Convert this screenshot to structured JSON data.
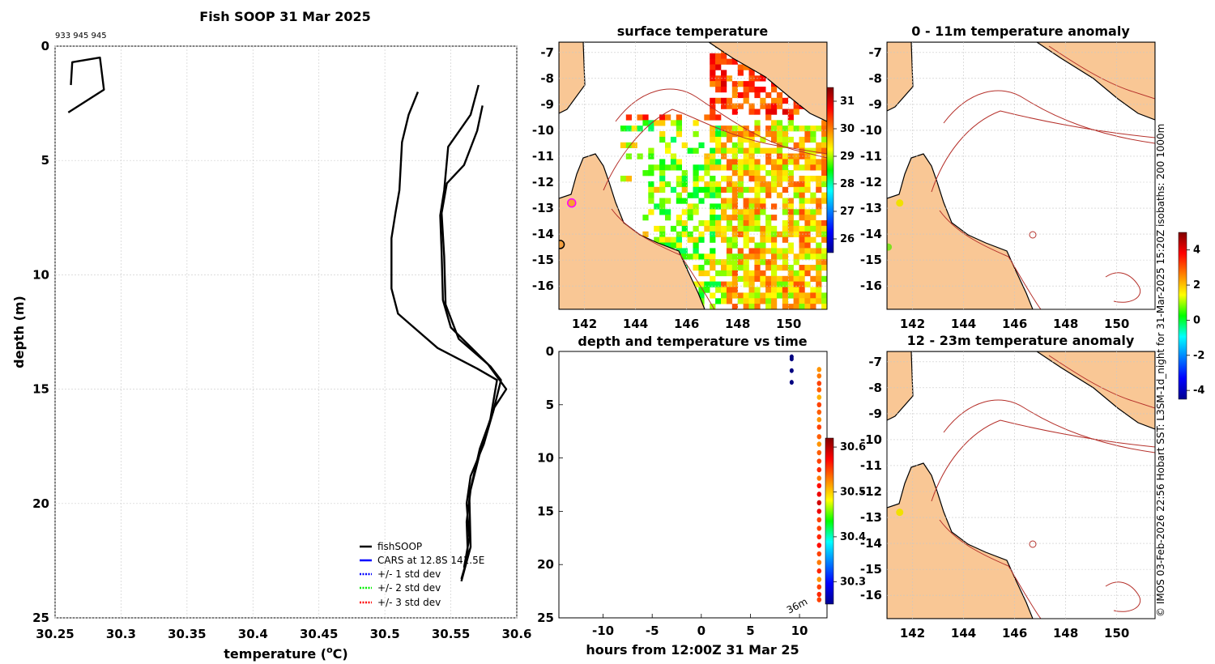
{
  "main_title": "Fish SOOP 31 Mar 2025",
  "ids_label": "933 945 945",
  "side_text": "© IMOS 03-Feb-2026 22:56 Hobart SST: L3SM-1d_night for 31-Mar-2025 15:20Z isobaths: 200  1000m",
  "colors": {
    "land": "#f9c795",
    "isobath": "#b5302a",
    "coast": "#000000",
    "profile": "#000000"
  },
  "chart_data": [
    {
      "id": "profile",
      "type": "line",
      "title": "",
      "xlabel": "temperature (",
      "xlabel_sup": "o",
      "xlabel_end": "C)",
      "ylabel": "depth (m)",
      "xlim": [
        30.25,
        30.6
      ],
      "ylim": [
        0,
        25
      ],
      "y_reversed": true,
      "grid": true,
      "xticks": [
        30.25,
        30.3,
        30.35,
        30.4,
        30.45,
        30.5,
        30.55,
        30.6
      ],
      "xtick_labels": [
        "30.25",
        "30.3",
        "30.35",
        "30.4",
        "30.45",
        "30.5",
        "30.55",
        "30.6"
      ],
      "yticks": [
        0,
        5,
        10,
        15,
        20,
        25
      ],
      "ytick_labels": [
        "0",
        "5",
        "10",
        "15",
        "20",
        "25"
      ],
      "series": [
        {
          "name": "fishSOOP",
          "points": [
            [
              30.262,
              1.7
            ],
            [
              30.263,
              0.7
            ],
            [
              30.284,
              0.5
            ],
            [
              30.287,
              1.9
            ],
            [
              30.26,
              2.9
            ]
          ]
        },
        {
          "name": "fishSOOP",
          "points": [
            [
              30.525,
              2.0
            ],
            [
              30.518,
              3.0
            ],
            [
              30.513,
              4.2
            ],
            [
              30.511,
              6.3
            ],
            [
              30.508,
              7.3
            ],
            [
              30.505,
              8.4
            ],
            [
              30.505,
              10.6
            ],
            [
              30.51,
              11.7
            ],
            [
              30.54,
              13.2
            ],
            [
              30.57,
              14.1
            ],
            [
              30.585,
              14.6
            ],
            [
              30.58,
              16.3
            ],
            [
              30.572,
              17.8
            ],
            [
              30.565,
              19.4
            ],
            [
              30.562,
              20.8
            ],
            [
              30.563,
              22.3
            ],
            [
              30.558,
              23.3
            ]
          ]
        },
        {
          "name": "fishSOOP",
          "points": [
            [
              30.571,
              1.7
            ],
            [
              30.565,
              3.0
            ],
            [
              30.548,
              4.4
            ],
            [
              30.545,
              6.3
            ],
            [
              30.542,
              7.4
            ],
            [
              30.543,
              9.0
            ],
            [
              30.544,
              11.1
            ],
            [
              30.55,
              12.3
            ],
            [
              30.578,
              13.9
            ],
            [
              30.592,
              15.0
            ],
            [
              30.583,
              15.8
            ],
            [
              30.575,
              17.4
            ],
            [
              30.565,
              18.8
            ],
            [
              30.562,
              20.0
            ],
            [
              30.564,
              21.5
            ],
            [
              30.56,
              22.8
            ]
          ]
        },
        {
          "name": "fishSOOP",
          "points": [
            [
              30.574,
              2.6
            ],
            [
              30.57,
              3.7
            ],
            [
              30.56,
              5.2
            ],
            [
              30.547,
              6.0
            ],
            [
              30.543,
              7.3
            ],
            [
              30.545,
              9.2
            ],
            [
              30.546,
              11.3
            ],
            [
              30.556,
              12.8
            ],
            [
              30.58,
              14.0
            ],
            [
              30.588,
              14.6
            ],
            [
              30.582,
              16.0
            ],
            [
              30.572,
              17.6
            ],
            [
              30.564,
              19.6
            ],
            [
              30.565,
              21.9
            ],
            [
              30.558,
              23.4
            ]
          ]
        }
      ],
      "legend": {
        "placement": "bottom-right",
        "entries": [
          {
            "label": "fishSOOP",
            "color": "#000000",
            "style": "solid"
          },
          {
            "label": "CARS at 12.8S 141.5E",
            "color": "#0000ff",
            "style": "solid"
          },
          {
            "label": "+/- 1 std dev",
            "color": "#0000ff",
            "style": "dotted"
          },
          {
            "label": "+/- 2 std dev",
            "color": "#00ee00",
            "style": "dotted"
          },
          {
            "label": "+/- 3 std dev",
            "color": "#ff0000",
            "style": "dotted"
          }
        ]
      }
    },
    {
      "id": "sst",
      "type": "heatmap",
      "title": "surface temperature",
      "xlim": [
        141,
        151.5
      ],
      "ylim": [
        -16.9,
        -6.6
      ],
      "xticks": [
        142,
        144,
        146,
        148,
        150
      ],
      "xtick_labels": [
        "142",
        "144",
        "146",
        "148",
        "150"
      ],
      "yticks": [
        -7,
        -8,
        -9,
        -10,
        -11,
        -12,
        -13,
        -14,
        -15,
        -16
      ],
      "ytick_labels": [
        "-7",
        "-8",
        "-9",
        "-10",
        "-11",
        "-12",
        "-13",
        "-14",
        "-15",
        "-16"
      ],
      "colorbar": {
        "range": [
          25.5,
          31.5
        ],
        "ticks": [
          26,
          27,
          28,
          29,
          30,
          31
        ],
        "tick_labels": [
          "26",
          "27",
          "28",
          "29",
          "30",
          "31"
        ]
      },
      "markers": [
        {
          "lon": 141.5,
          "lat": -12.8,
          "color": "#f7a030",
          "edge": "#ff00ff"
        },
        {
          "lon": 141.05,
          "lat": -14.4,
          "color": "#f5a040",
          "edge": "#000000"
        }
      ]
    },
    {
      "id": "anom_top",
      "type": "map",
      "title": "0 - 11m temperature anomaly",
      "xlim": [
        141,
        151.5
      ],
      "ylim": [
        -16.9,
        -6.6
      ],
      "xticks": [
        142,
        144,
        146,
        148,
        150
      ],
      "xtick_labels": [
        "142",
        "144",
        "146",
        "148",
        "150"
      ],
      "yticks": [
        -7,
        -8,
        -9,
        -10,
        -11,
        -12,
        -13,
        -14,
        -15,
        -16
      ],
      "ytick_labels": [
        "-7",
        "-8",
        "-9",
        "-10",
        "-11",
        "-12",
        "-13",
        "-14",
        "-15",
        "-16"
      ],
      "markers": [
        {
          "lon": 141.5,
          "lat": -12.8,
          "color": "#f0e000"
        },
        {
          "lon": 141.05,
          "lat": -14.5,
          "color": "#80e020"
        }
      ],
      "colorbar": {
        "range": [
          -4.5,
          5
        ],
        "ticks": [
          4,
          2,
          0,
          -2,
          -4
        ],
        "tick_labels": [
          "4",
          "2",
          "0",
          "-2",
          "-4"
        ]
      }
    },
    {
      "id": "anom_bot",
      "type": "map",
      "title": "12 - 23m temperature anomaly",
      "xlim": [
        141,
        151.5
      ],
      "ylim": [
        -16.9,
        -6.6
      ],
      "xticks": [
        142,
        144,
        146,
        148,
        150
      ],
      "xtick_labels": [
        "142",
        "144",
        "146",
        "148",
        "150"
      ],
      "yticks": [
        -7,
        -8,
        -9,
        -10,
        -11,
        -12,
        -13,
        -14,
        -15,
        -16
      ],
      "ytick_labels": [
        "-7",
        "-8",
        "-9",
        "-10",
        "-11",
        "-12",
        "-13",
        "-14",
        "-15",
        "-16"
      ],
      "markers": [
        {
          "lon": 141.5,
          "lat": -12.8,
          "color": "#f0e000"
        }
      ]
    },
    {
      "id": "time",
      "type": "scatter",
      "title": "depth and temperature vs time",
      "xlabel": "hours from 12:00Z 31 Mar 25",
      "xlim": [
        -14.5,
        12.8
      ],
      "ylim": [
        0,
        25
      ],
      "y_reversed": true,
      "xticks": [
        -10,
        -5,
        0,
        5,
        10
      ],
      "xtick_labels": [
        "-10",
        "-5",
        "0",
        "5",
        "10"
      ],
      "yticks": [
        0,
        5,
        10,
        15,
        20,
        25
      ],
      "ytick_labels": [
        "0",
        "5",
        "10",
        "15",
        "20",
        "25"
      ],
      "annotation": "36m",
      "colorbar": {
        "range": [
          30.25,
          30.62
        ],
        "ticks": [
          30.3,
          30.4,
          30.5,
          30.6
        ],
        "tick_labels": [
          "30.3",
          "30.4",
          "30.5",
          "30.6"
        ]
      },
      "early_points": {
        "x": 9.2,
        "depths": [
          0.5,
          0.7,
          1.8,
          2.9
        ],
        "color": "#000080"
      },
      "late_points": {
        "x": 12.0,
        "depths": [
          1.7,
          2.3,
          3.0,
          3.6,
          4.3,
          5.0,
          5.7,
          6.4,
          7.1,
          8.0,
          8.7,
          9.5,
          10.3,
          11.1,
          11.9,
          12.6,
          13.4,
          14.2,
          15.0,
          15.8,
          16.6,
          17.4,
          18.2,
          19.0,
          19.8,
          20.6,
          21.4,
          22.1,
          22.8,
          23.3
        ],
        "temps": [
          30.52,
          30.53,
          30.55,
          30.54,
          30.51,
          30.55,
          30.54,
          30.52,
          30.55,
          30.54,
          30.52,
          30.54,
          30.55,
          30.56,
          30.53,
          30.57,
          30.58,
          30.59,
          30.58,
          30.55,
          30.55,
          30.56,
          30.57,
          30.55,
          30.53,
          30.56,
          30.52,
          30.55,
          30.56,
          30.55
        ]
      }
    }
  ]
}
